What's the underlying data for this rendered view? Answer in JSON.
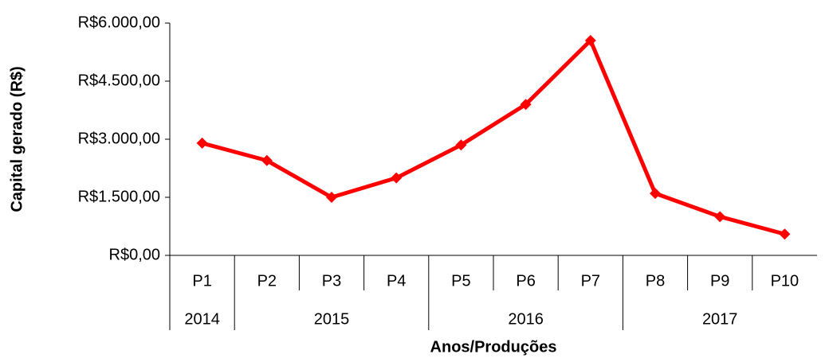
{
  "chart_data": {
    "type": "line",
    "x_label": "Anos/Produções",
    "y_label": "Capital gerado (R$)",
    "categories": [
      "P1",
      "P2",
      "P3",
      "P4",
      "P5",
      "P6",
      "P7",
      "P8",
      "P9",
      "P10"
    ],
    "category_groups": [
      {
        "label": "2014",
        "count": 1
      },
      {
        "label": "2015",
        "count": 3
      },
      {
        "label": "2016",
        "count": 3
      },
      {
        "label": "2017",
        "count": 3
      }
    ],
    "series": [
      {
        "color": "#ff0000",
        "values": [
          2900,
          2450,
          1500,
          2000,
          2850,
          3900,
          5550,
          1600,
          1000,
          550
        ]
      }
    ],
    "ylim": [
      0,
      6000
    ],
    "yticks": [
      {
        "value": 0,
        "label": "R$0,00"
      },
      {
        "value": 1500,
        "label": "R$1.500,00"
      },
      {
        "value": 3000,
        "label": "R$3.000,00"
      },
      {
        "value": 4500,
        "label": "R$4.500,00"
      },
      {
        "value": 6000,
        "label": "R$6.000,00"
      }
    ],
    "grid": false
  }
}
